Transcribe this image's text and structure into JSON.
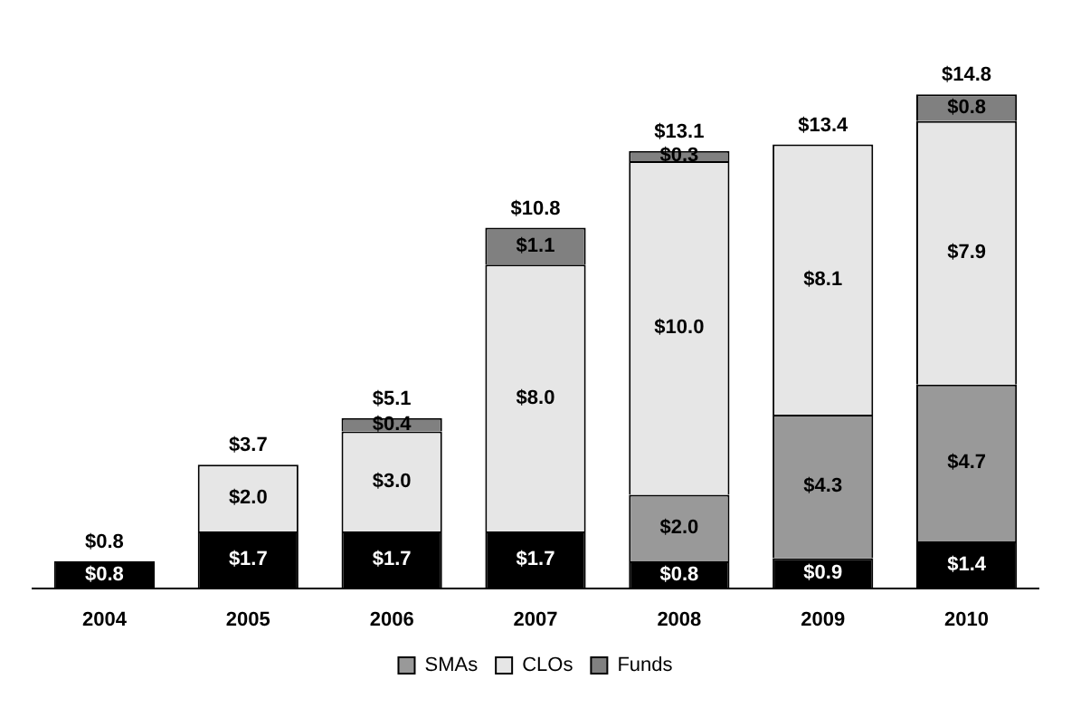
{
  "chart_data": {
    "type": "bar",
    "stacked": true,
    "categories": [
      "2004",
      "2005",
      "2006",
      "2007",
      "2008",
      "2009",
      "2010"
    ],
    "series": [
      {
        "color": "#000000",
        "values": [
          0.8,
          1.7,
          1.7,
          1.7,
          0.8,
          0.9,
          1.4
        ],
        "value_labels": [
          "$0.8",
          "$1.7",
          "$1.7",
          "$1.7",
          "$0.8",
          "$0.9",
          "$1.4"
        ]
      },
      {
        "name": "SMAs",
        "color": "#999999",
        "values": [
          null,
          null,
          null,
          null,
          2.0,
          4.3,
          4.7
        ],
        "value_labels": [
          null,
          null,
          null,
          null,
          "$2.0",
          "$4.3",
          "$4.7"
        ]
      },
      {
        "name": "CLOs",
        "color": "#e6e6e6",
        "values": [
          null,
          2.0,
          3.0,
          8.0,
          10.0,
          8.1,
          7.9
        ],
        "value_labels": [
          null,
          "$2.0",
          "$3.0",
          "$8.0",
          "$10.0",
          "$8.1",
          "$7.9"
        ]
      },
      {
        "name": "Funds",
        "color": "#808080",
        "values": [
          null,
          null,
          0.4,
          1.1,
          0.3,
          null,
          0.8
        ],
        "value_labels": [
          null,
          null,
          "$0.4",
          "$1.1",
          "$0.3",
          null,
          "$0.8"
        ]
      }
    ],
    "totals": [
      "$0.8",
      "$3.7",
      "$5.1",
      "$10.8",
      "$13.1",
      "$13.4",
      "$14.8"
    ],
    "legend": "bottom",
    "grid": false
  }
}
